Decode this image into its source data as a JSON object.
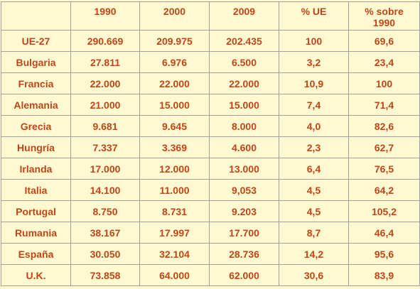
{
  "table": {
    "headers": [
      "",
      "1990",
      "2000",
      "2009",
      "% UE",
      "% sobre\n1990"
    ],
    "rows": [
      [
        "UE-27",
        "290.669",
        "209.975",
        "202.435",
        "100",
        "69,6"
      ],
      [
        "Bulgaria",
        "27.811",
        "6.976",
        "6.500",
        "3,2",
        "23,4"
      ],
      [
        "Francia",
        "22.000",
        "22.000",
        "22.000",
        "10,9",
        "100"
      ],
      [
        "Alemania",
        "21.000",
        "15.000",
        "15.000",
        "7,4",
        "71,4"
      ],
      [
        "Grecia",
        "9.681",
        "9.645",
        "8.000",
        "4,0",
        "82,6"
      ],
      [
        "Hungría",
        "7.337",
        "3.369",
        "4.600",
        "2,3",
        "62,7"
      ],
      [
        "Irlanda",
        "17.000",
        "12.000",
        "13.000",
        "6,4",
        "76,5"
      ],
      [
        "Italia",
        "14.100",
        "11.000",
        "9,053",
        "4,5",
        "64,2"
      ],
      [
        "Portugal",
        "8.750",
        "8.731",
        "9.203",
        "4,5",
        "105,2"
      ],
      [
        "Rumania",
        "38.167",
        "17.997",
        "17.700",
        "8,7",
        "46,4"
      ],
      [
        "España",
        "30.050",
        "32.104",
        "28.736",
        "14,2",
        "95,6"
      ],
      [
        "U.K.",
        "73.858",
        "64.000",
        "62.000",
        "30,6",
        "83,9"
      ]
    ]
  }
}
